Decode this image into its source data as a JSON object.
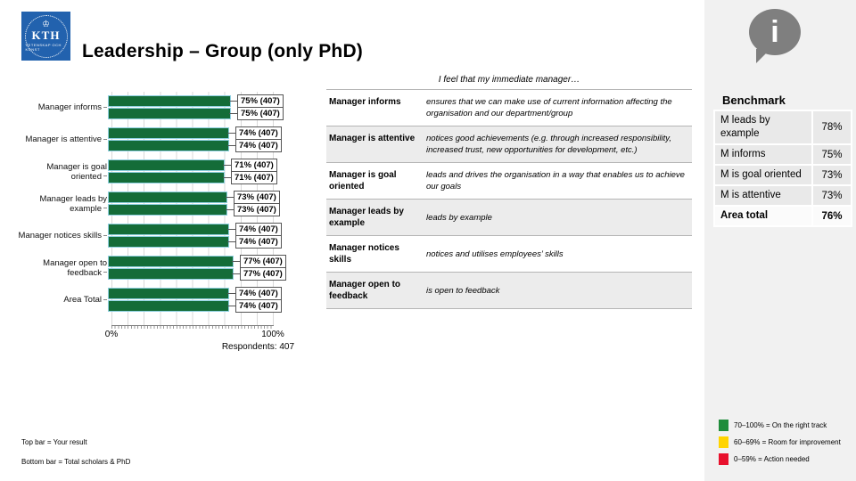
{
  "slide": {
    "title": "Leadership – Group (only PhD)",
    "logo": {
      "crown_glyph": "♔",
      "text": "KTH",
      "subtext": "VETENSKAP OCH KONST",
      "color": "#2262ae"
    },
    "info_glyph": "i"
  },
  "chart_data": {
    "type": "bar",
    "orientation": "horizontal",
    "categories": [
      "Manager informs",
      "Manager is attentive",
      "Manager is goal oriented",
      "Manager leads by example",
      "Manager notices skills",
      "Manager open to feedback",
      "Area Total"
    ],
    "series": [
      {
        "name": "Your result",
        "values": [
          75,
          74,
          71,
          73,
          74,
          77,
          74
        ],
        "labels": [
          "75% (407)",
          "74% (407)",
          "71% (407)",
          "73% (407)",
          "74% (407)",
          "77% (407)",
          "74% (407)"
        ]
      },
      {
        "name": "Total scholars & PhD",
        "values": [
          75,
          74,
          71,
          73,
          74,
          77,
          74
        ],
        "labels": [
          "75% (407)",
          "74% (407)",
          "71% (407)",
          "73% (407)",
          "74% (407)",
          "77% (407)",
          "74% (407)"
        ]
      }
    ],
    "xlim": [
      0,
      100
    ],
    "x_ticks": [
      "0%",
      "100%"
    ],
    "footnote": "Respondents: 407",
    "bar_color": "#146c38",
    "bar_outline_color": "#8fd0e0",
    "grid": true
  },
  "statements": {
    "header": "I feel that my immediate manager…",
    "rows": [
      {
        "label": "Manager informs",
        "description": "ensures that we can make use of current information affecting the organisation and our department/group"
      },
      {
        "label": "Manager is attentive",
        "description": "notices good achievements (e.g. through increased responsibility, increased trust, new opportunities for development, etc.)"
      },
      {
        "label": "Manager is goal oriented",
        "description": "leads and drives the organisation in a way that enables us to achieve our goals"
      },
      {
        "label": "Manager leads by example",
        "description": "leads by example"
      },
      {
        "label": "Manager notices skills",
        "description": "notices and utilises employees’ skills"
      },
      {
        "label": "Manager open to feedback",
        "description": "is open to feedback"
      }
    ]
  },
  "benchmark": {
    "title": "Benchmark",
    "rows": [
      {
        "label": "M leads by example",
        "value": "78%",
        "total": false
      },
      {
        "label": "M informs",
        "value": "75%",
        "total": false
      },
      {
        "label": "M is goal oriented",
        "value": "73%",
        "total": false
      },
      {
        "label": "M is attentive",
        "value": "73%",
        "total": false
      },
      {
        "label": "Area total",
        "value": "76%",
        "total": true
      }
    ]
  },
  "legend": {
    "bar_notes": [
      "Top bar = Your result",
      "Bottom bar = Total scholars & PhD"
    ],
    "thresholds": [
      {
        "color": "#1f8c3b",
        "label": "70–100% = On the right track"
      },
      {
        "color": "#ffd400",
        "label": "60–69% = Room for improvement"
      },
      {
        "color": "#e8112d",
        "label": "0–59% = Action needed"
      }
    ]
  }
}
